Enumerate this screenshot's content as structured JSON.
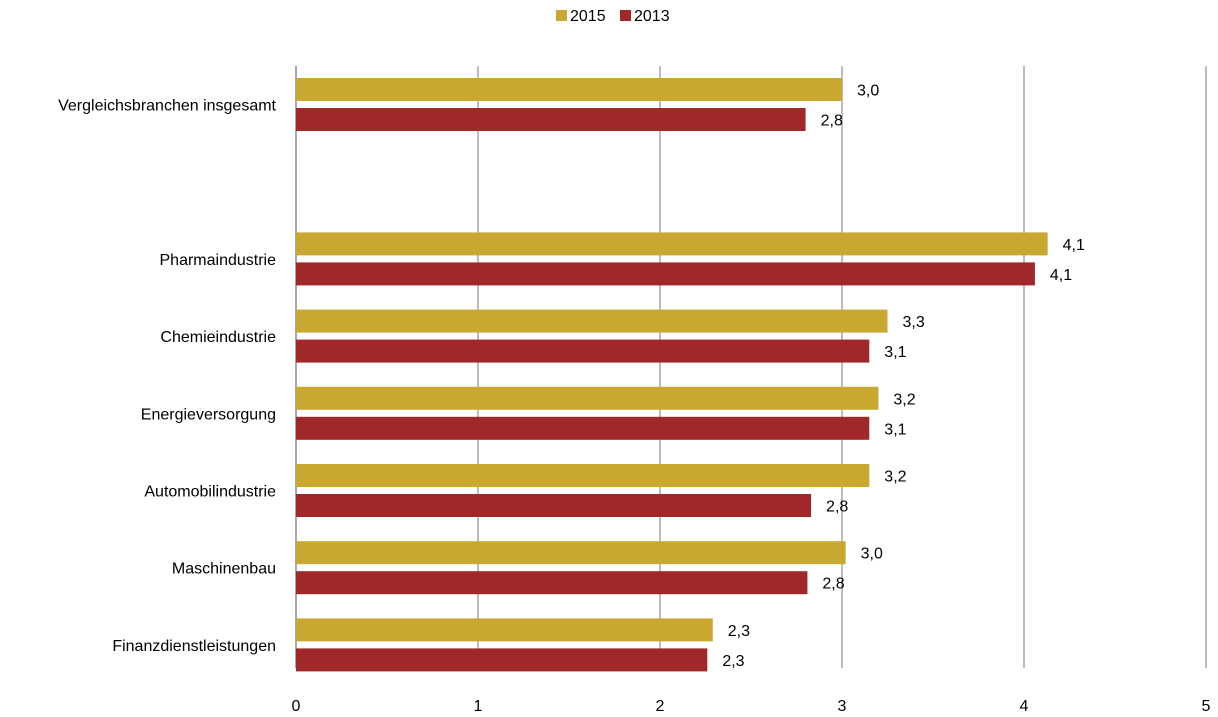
{
  "chart_data": {
    "type": "bar",
    "orientation": "horizontal",
    "categories": [
      "Vergleichsbranchen insgesamt",
      "",
      "Pharmaindustrie",
      "Chemieindustrie",
      "Energieversorgung",
      "Automobilindustrie",
      "Maschinenbau",
      "Finanzdienstleistungen"
    ],
    "series": [
      {
        "name": "2015",
        "color": "#C9A832",
        "values": [
          3.0,
          null,
          4.13,
          3.25,
          3.2,
          3.15,
          3.02,
          2.29
        ],
        "labels": [
          "3,0",
          "",
          "4,1",
          "3,3",
          "3,2",
          "3,2",
          "3,0",
          "2,3"
        ]
      },
      {
        "name": "2013",
        "color": "#A12829",
        "values": [
          2.8,
          null,
          4.06,
          3.15,
          3.15,
          2.83,
          2.81,
          2.26
        ],
        "labels": [
          "2,8",
          "",
          "4,1",
          "3,1",
          "3,1",
          "2,8",
          "2,8",
          "2,3"
        ]
      }
    ],
    "xlim": [
      0,
      5
    ],
    "xticks": [
      "0",
      "1",
      "2",
      "3",
      "4",
      "5"
    ],
    "grid": "vertical",
    "legend": "top-center",
    "title": "",
    "xlabel": "",
    "ylabel": ""
  }
}
